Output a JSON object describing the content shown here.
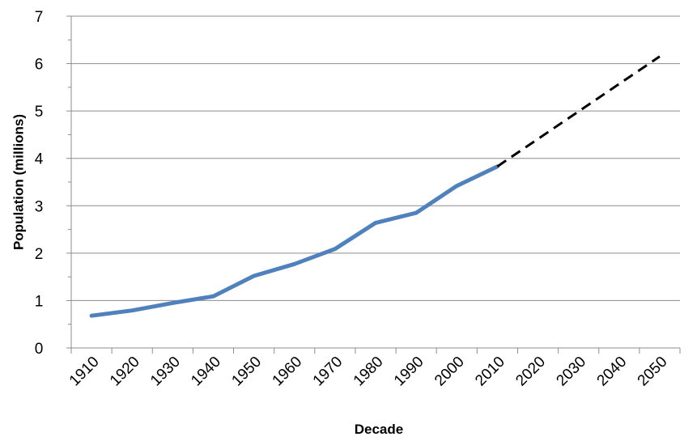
{
  "chart_data": {
    "type": "line",
    "xlabel": "Decade",
    "ylabel": "Population (millions)",
    "ylim": [
      0,
      7
    ],
    "yticks": [
      0,
      1,
      2,
      3,
      4,
      5,
      6,
      7
    ],
    "categories": [
      "1910",
      "1920",
      "1930",
      "1940",
      "1950",
      "1960",
      "1970",
      "1980",
      "1990",
      "2000",
      "2010",
      "2020",
      "2030",
      "2040",
      "2050"
    ],
    "grid": "horizontal",
    "legend": "none",
    "series": [
      {
        "style": "solid",
        "color": "#4f81bd",
        "points": [
          {
            "x": 1915,
            "y": 0.68
          },
          {
            "x": 1925,
            "y": 0.79
          },
          {
            "x": 1935,
            "y": 0.95
          },
          {
            "x": 1945,
            "y": 1.09
          },
          {
            "x": 1955,
            "y": 1.52
          },
          {
            "x": 1965,
            "y": 1.77
          },
          {
            "x": 1975,
            "y": 2.09
          },
          {
            "x": 1985,
            "y": 2.64
          },
          {
            "x": 1995,
            "y": 2.85
          },
          {
            "x": 2005,
            "y": 3.42
          },
          {
            "x": 2015,
            "y": 3.83
          }
        ]
      },
      {
        "style": "dashed",
        "color": "#000000",
        "points": [
          {
            "x": 2015,
            "y": 3.83
          },
          {
            "x": 2055,
            "y": 6.15
          }
        ]
      }
    ]
  }
}
